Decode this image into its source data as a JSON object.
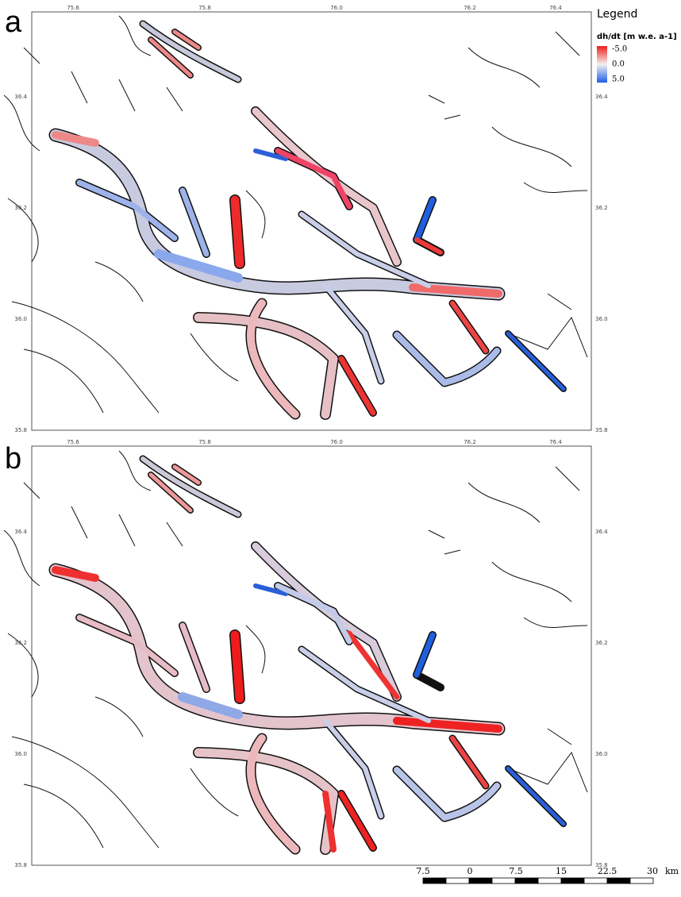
{
  "panels": [
    {
      "label": "a",
      "top_ticks": [
        "75.6",
        "75.8",
        "76.0",
        "76.2",
        "76.4"
      ],
      "left_ticks": [
        "36.4",
        "36.2",
        "36.0",
        "35.8"
      ],
      "right_ticks": [
        "36.4",
        "36.2",
        "36.0",
        "35.8"
      ]
    },
    {
      "label": "b",
      "top_ticks": [
        "75.6",
        "75.8",
        "76.0",
        "76.2",
        "76.4"
      ],
      "left_ticks": [
        "36.4",
        "36.2",
        "36.0",
        "35.8"
      ],
      "right_ticks": [
        "36.4",
        "36.2",
        "36.0",
        "35.8"
      ]
    }
  ],
  "legend": {
    "title": "Legend",
    "variable": "dh/dt [m w.e. a-1]",
    "entries": [
      "-5.0",
      "0.0",
      "5.0"
    ]
  },
  "scale_bar": {
    "labels": [
      "7.5",
      "0",
      "7.5",
      "15",
      "22.5",
      "30"
    ],
    "unit": "km"
  }
}
